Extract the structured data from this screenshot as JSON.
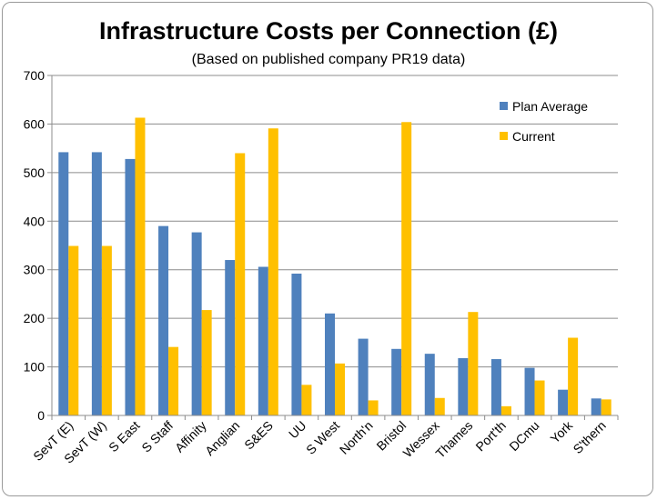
{
  "chart_data": {
    "type": "bar",
    "title": "Infrastructure Costs per Connection (£)",
    "subtitle": "(Based on published company PR19 data)",
    "xlabel": "",
    "ylabel": "",
    "ylim": [
      0,
      700
    ],
    "yticks": [
      0,
      100,
      200,
      300,
      400,
      500,
      600,
      700
    ],
    "grid": true,
    "legend_position": "top-right",
    "categories": [
      "SevT (E)",
      "SevT (W)",
      "S East",
      "S Staff",
      "Affinity",
      "Anglian",
      "S&ES",
      "UU",
      "S West",
      "North'n",
      "Bristol",
      "Wessex",
      "Thames",
      "Port'th",
      "DCmu",
      "York",
      "S'thern"
    ],
    "series": [
      {
        "name": "Plan Average",
        "color": "#4f81bd",
        "values": [
          542,
          542,
          528,
          390,
          377,
          320,
          306,
          292,
          210,
          158,
          137,
          127,
          118,
          116,
          98,
          53,
          35
        ]
      },
      {
        "name": "Current",
        "color": "#ffc000",
        "values": [
          349,
          349,
          613,
          141,
          217,
          540,
          591,
          63,
          107,
          31,
          604,
          36,
          213,
          19,
          72,
          160,
          33
        ]
      }
    ]
  }
}
